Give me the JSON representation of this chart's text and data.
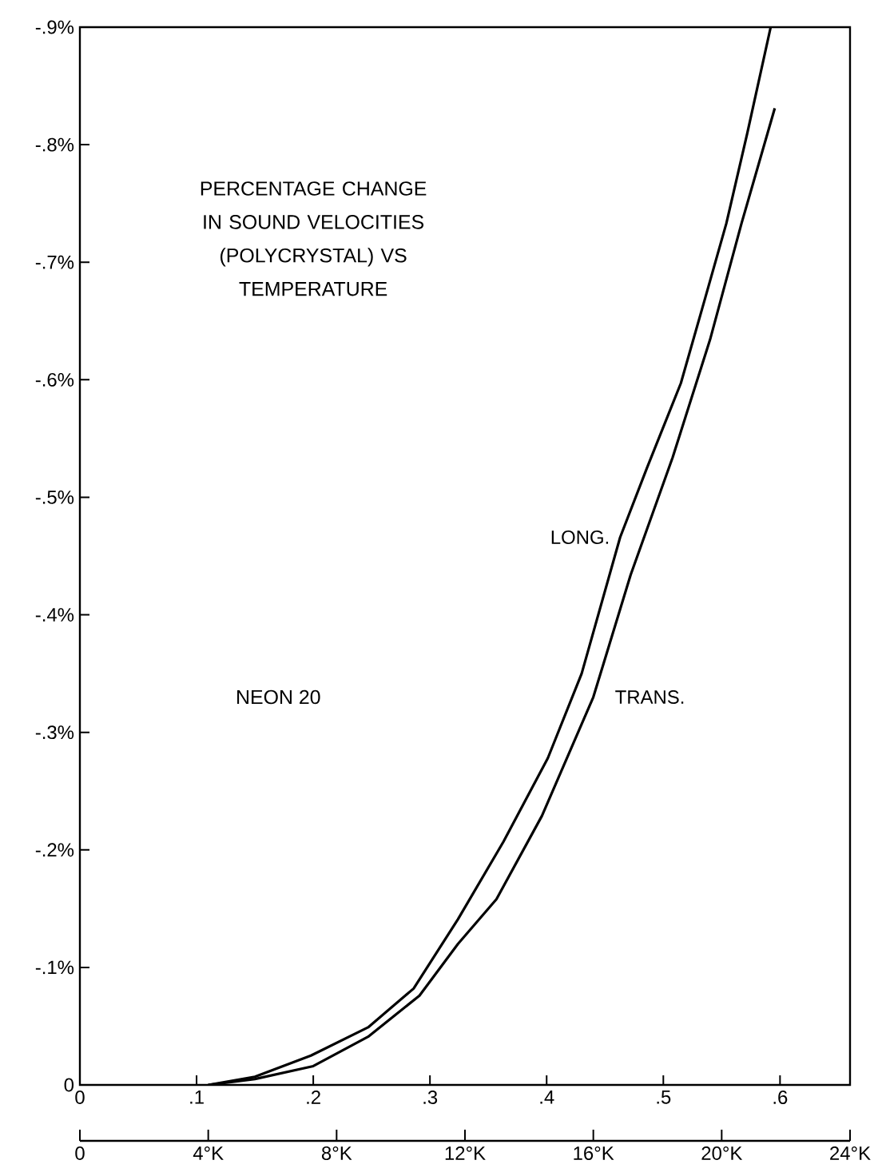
{
  "chart_data": {
    "type": "line",
    "title": "PERCENTAGE CHANGE IN SOUND VELOCITIES (POLYCRYSTAL) VS TEMPERATURE",
    "annotations": [
      "NEON 20"
    ],
    "xlim": [
      0,
      0.66
    ],
    "ylim": [
      0,
      -0.9
    ],
    "xticks": [
      {
        "value": 0,
        "label": "0"
      },
      {
        "value": 0.1,
        "label": ".1"
      },
      {
        "value": 0.2,
        "label": ".2"
      },
      {
        "value": 0.3,
        "label": ".3"
      },
      {
        "value": 0.4,
        "label": ".4"
      },
      {
        "value": 0.5,
        "label": ".5"
      },
      {
        "value": 0.6,
        "label": ".6"
      }
    ],
    "yticks": [
      {
        "value": 0,
        "label": "0"
      },
      {
        "value": -0.1,
        "label": "-.1%"
      },
      {
        "value": -0.2,
        "label": "-.2%"
      },
      {
        "value": -0.3,
        "label": "-.3%"
      },
      {
        "value": -0.4,
        "label": "-.4%"
      },
      {
        "value": -0.5,
        "label": "-.5%"
      },
      {
        "value": -0.6,
        "label": "-.6%"
      },
      {
        "value": -0.7,
        "label": "-.7%"
      },
      {
        "value": -0.8,
        "label": "-.8%"
      },
      {
        "value": -0.9,
        "label": "-.9%"
      }
    ],
    "x2lim": [
      0,
      24
    ],
    "x2ticks": [
      {
        "value": 0,
        "label": "0"
      },
      {
        "value": 4,
        "label": "4°K"
      },
      {
        "value": 8,
        "label": "8°K"
      },
      {
        "value": 12,
        "label": "12°K"
      },
      {
        "value": 16,
        "label": "16°K"
      },
      {
        "value": 20,
        "label": "20°K"
      },
      {
        "value": 24,
        "label": "24°K"
      }
    ],
    "series": [
      {
        "name": "LONG.",
        "color": "#000000",
        "x": [
          0.11,
          0.15,
          0.198,
          0.247,
          0.286,
          0.324,
          0.363,
          0.401,
          0.43,
          0.463,
          0.486,
          0.515,
          0.536,
          0.554,
          0.572,
          0.592
        ],
        "values": [
          0,
          -0.007,
          -0.025,
          -0.049,
          -0.082,
          -0.141,
          -0.207,
          -0.278,
          -0.35,
          -0.466,
          -0.525,
          -0.597,
          -0.67,
          -0.733,
          -0.81,
          -0.9
        ]
      },
      {
        "name": "TRANS.",
        "color": "#000000",
        "x": [
          0.11,
          0.15,
          0.2,
          0.247,
          0.291,
          0.324,
          0.357,
          0.396,
          0.44,
          0.472,
          0.508,
          0.54,
          0.567,
          0.5955
        ],
        "values": [
          0,
          -0.005,
          -0.016,
          -0.041,
          -0.076,
          -0.12,
          -0.158,
          -0.229,
          -0.33,
          -0.434,
          -0.534,
          -0.634,
          -0.733,
          -0.831
        ]
      }
    ]
  }
}
